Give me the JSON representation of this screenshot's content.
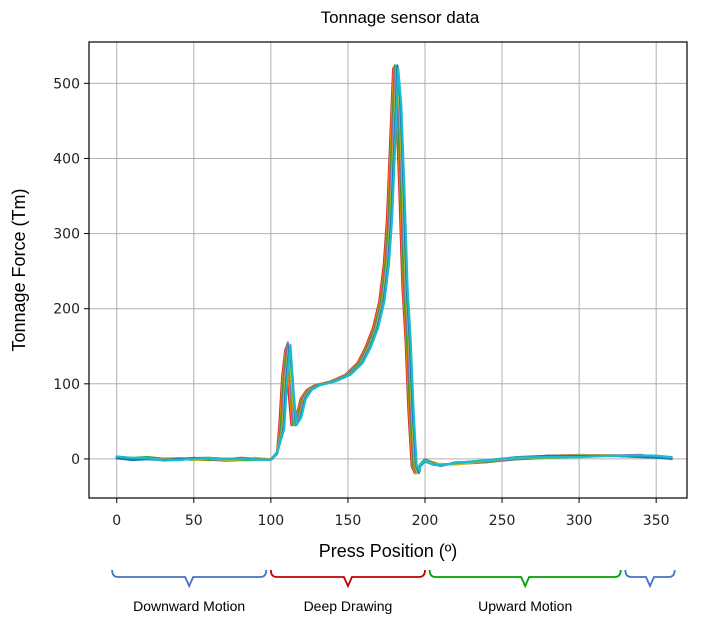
{
  "chart_data": {
    "type": "line",
    "title": "Tonnage sensor data",
    "xlabel": "Press Position (º)",
    "ylabel": "Tonnage Force (Tm)",
    "xlim": [
      -18,
      370
    ],
    "ylim": [
      -52,
      555
    ],
    "xticks": [
      0,
      50,
      100,
      150,
      200,
      250,
      300,
      350
    ],
    "yticks": [
      0,
      100,
      200,
      300,
      400,
      500
    ],
    "grid": true,
    "series_colors": [
      "#d62728",
      "#ff7f0e",
      "#2ca02c",
      "#9467bd",
      "#bcbd22",
      "#1f77b4",
      "#17becf"
    ],
    "curve": {
      "x": [
        0,
        10,
        20,
        30,
        40,
        50,
        60,
        70,
        80,
        90,
        100,
        104,
        107,
        109,
        111,
        113,
        115,
        118,
        121,
        125,
        130,
        140,
        150,
        158,
        163,
        168,
        172,
        175,
        177,
        179,
        181,
        183,
        185,
        187,
        189,
        191,
        193,
        195,
        197,
        200,
        205,
        210,
        220,
        240,
        260,
        280,
        300,
        320,
        340,
        350,
        360
      ],
      "y": [
        2,
        0,
        1,
        -1,
        0,
        0,
        0,
        -1,
        0,
        0,
        0,
        8,
        40,
        110,
        150,
        100,
        45,
        55,
        80,
        92,
        98,
        103,
        112,
        128,
        148,
        175,
        210,
        260,
        320,
        420,
        520,
        470,
        360,
        230,
        160,
        60,
        -10,
        -18,
        -8,
        -2,
        -6,
        -8,
        -6,
        -3,
        1,
        3,
        4,
        5,
        4,
        3,
        1
      ]
    },
    "phases": [
      {
        "label": "Downward Motion",
        "color": "#4472c4",
        "from": -3,
        "to": 97
      },
      {
        "label": "Deep Drawing",
        "color": "#c00000",
        "from": 100,
        "to": 200
      },
      {
        "label": "Upward Motion",
        "color": "#00a000",
        "from": 203,
        "to": 327
      },
      {
        "label": "",
        "color": "#4472c4",
        "from": 330,
        "to": 362
      }
    ]
  }
}
